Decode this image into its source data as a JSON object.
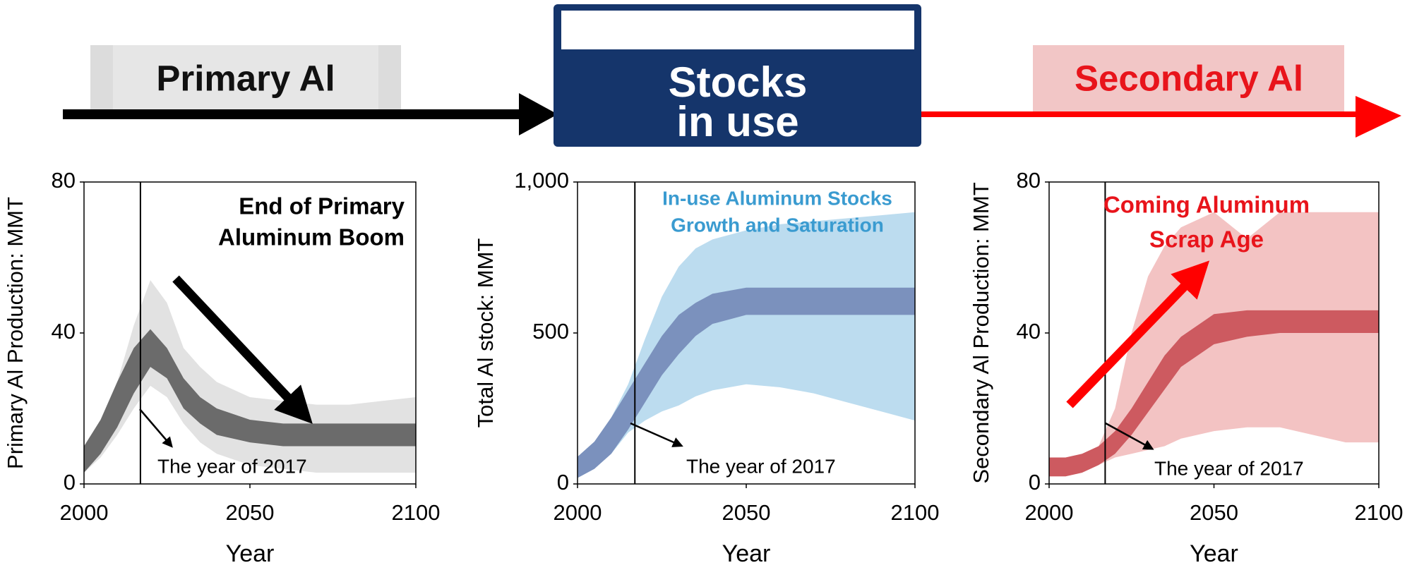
{
  "flow": {
    "source": "Primary Al",
    "stock": [
      "Stocks",
      "in use"
    ],
    "sink": "Secondary Al"
  },
  "chart_data": [
    {
      "type": "band",
      "xlabel": "Year",
      "ylabel": "Primary Al Production: MMT",
      "annotation": [
        "End of Primary",
        "Aluminum Boom"
      ],
      "note": "The year of 2017",
      "vline": 2017,
      "x": [
        2000,
        2005,
        2010,
        2015,
        2020,
        2025,
        2030,
        2035,
        2040,
        2050,
        2060,
        2070,
        2080,
        2090,
        2100
      ],
      "series": [
        {
          "color": "#e2e2e2",
          "lower": [
            3,
            7,
            13,
            20,
            26,
            23,
            16,
            11,
            8,
            5,
            4,
            3,
            3,
            3,
            3
          ],
          "upper": [
            10,
            17,
            27,
            42,
            54,
            48,
            36,
            31,
            27,
            23,
            22,
            21,
            21,
            22,
            23
          ]
        },
        {
          "color": "#6b6b6b",
          "lower": [
            3,
            8,
            15,
            24,
            31,
            28,
            20,
            16,
            13,
            11,
            10,
            10,
            10,
            10,
            10
          ],
          "upper": [
            10,
            17,
            27,
            36,
            41,
            36,
            28,
            23,
            20,
            17,
            16,
            16,
            16,
            16,
            16
          ]
        }
      ],
      "xlim": [
        2000,
        2100
      ],
      "xticks": [
        2000,
        2050,
        2100
      ],
      "ylim": [
        0,
        80
      ],
      "yticks": [
        0,
        40,
        80
      ]
    },
    {
      "type": "band",
      "xlabel": "Year",
      "ylabel": "Total Al stock: MMT",
      "annotation": [
        "In-use Aluminum Stocks",
        "Growth and Saturation"
      ],
      "note": "The year of 2017",
      "vline": 2017,
      "x": [
        2000,
        2005,
        2010,
        2015,
        2020,
        2025,
        2030,
        2035,
        2040,
        2050,
        2060,
        2070,
        2080,
        2090,
        2100
      ],
      "series": [
        {
          "color": "#bcdcef",
          "lower": [
            20,
            50,
            100,
            170,
            210,
            240,
            260,
            290,
            310,
            330,
            320,
            300,
            270,
            240,
            210
          ],
          "upper": [
            90,
            140,
            220,
            330,
            480,
            620,
            720,
            780,
            810,
            840,
            860,
            870,
            880,
            890,
            900
          ]
        },
        {
          "color": "#7b91bd",
          "lower": [
            20,
            50,
            100,
            180,
            270,
            360,
            430,
            490,
            530,
            560,
            560,
            560,
            560,
            560,
            560
          ],
          "upper": [
            90,
            140,
            220,
            310,
            400,
            490,
            560,
            600,
            630,
            650,
            650,
            650,
            650,
            650,
            650
          ]
        }
      ],
      "xlim": [
        2000,
        2100
      ],
      "xticks": [
        2000,
        2050,
        2100
      ],
      "ylim": [
        0,
        1000
      ],
      "yticks": [
        0,
        500,
        {
          "value": 1000,
          "label": "1,000"
        }
      ]
    },
    {
      "type": "band",
      "xlabel": "Year",
      "ylabel": "Secondary Al Production: MMT",
      "annotation": [
        "Coming Aluminum",
        "Scrap Age"
      ],
      "note": "The year of 2017",
      "vline": 2017,
      "x": [
        2000,
        2005,
        2010,
        2015,
        2020,
        2025,
        2030,
        2035,
        2040,
        2050,
        2060,
        2070,
        2080,
        2090,
        2100
      ],
      "series": [
        {
          "color": "#f3c3c3",
          "lower": [
            2,
            2,
            3,
            5,
            7,
            8,
            9,
            10,
            12,
            14,
            15,
            15,
            13,
            11,
            11
          ],
          "upper": [
            7,
            7,
            8,
            10,
            20,
            40,
            55,
            63,
            68,
            72,
            65,
            72,
            72,
            72,
            72
          ]
        },
        {
          "color": "#cd5a60",
          "lower": [
            2,
            2,
            3,
            5,
            8,
            13,
            19,
            25,
            31,
            37,
            39,
            40,
            40,
            40,
            40
          ],
          "upper": [
            7,
            7,
            8,
            10,
            14,
            20,
            27,
            34,
            39,
            45,
            46,
            46,
            46,
            46,
            46
          ]
        }
      ],
      "xlim": [
        2000,
        2100
      ],
      "xticks": [
        2000,
        2050,
        2100
      ],
      "ylim": [
        0,
        80
      ],
      "yticks": [
        0,
        40,
        80
      ]
    }
  ]
}
